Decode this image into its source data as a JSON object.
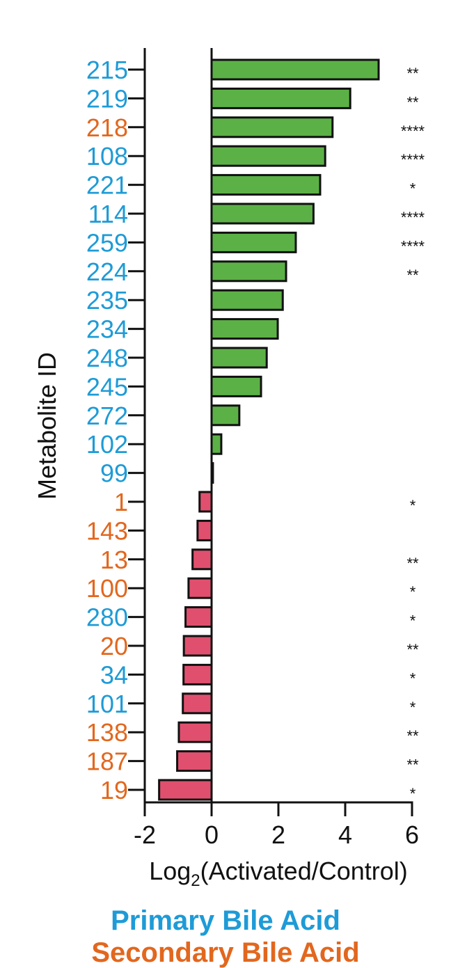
{
  "chart_data": {
    "type": "bar",
    "orientation": "horizontal",
    "ylabel": "Metabolite ID",
    "xlabel_main": "Log",
    "xlabel_sub": "2",
    "xlabel_rest": "(Activated/Control)",
    "xlim": [
      -2,
      6
    ],
    "xticks": [
      "-2",
      "0",
      "2",
      "4",
      "6"
    ],
    "positive_color": "#5cb146",
    "negative_color": "#e0506e",
    "class_colors": {
      "primary": "#1e9bd7",
      "secondary": "#e2671e"
    },
    "rows": [
      {
        "id": "215",
        "value": 5.0,
        "class": "primary",
        "sig": "**"
      },
      {
        "id": "219",
        "value": 4.15,
        "class": "primary",
        "sig": "**"
      },
      {
        "id": "218",
        "value": 3.62,
        "class": "secondary",
        "sig": "****"
      },
      {
        "id": "108",
        "value": 3.4,
        "class": "primary",
        "sig": "****"
      },
      {
        "id": "221",
        "value": 3.25,
        "class": "primary",
        "sig": "*"
      },
      {
        "id": "114",
        "value": 3.05,
        "class": "primary",
        "sig": "****"
      },
      {
        "id": "259",
        "value": 2.52,
        "class": "primary",
        "sig": "****"
      },
      {
        "id": "224",
        "value": 2.23,
        "class": "primary",
        "sig": "**"
      },
      {
        "id": "235",
        "value": 2.13,
        "class": "primary",
        "sig": ""
      },
      {
        "id": "234",
        "value": 1.98,
        "class": "primary",
        "sig": ""
      },
      {
        "id": "248",
        "value": 1.65,
        "class": "primary",
        "sig": ""
      },
      {
        "id": "245",
        "value": 1.48,
        "class": "primary",
        "sig": ""
      },
      {
        "id": "272",
        "value": 0.83,
        "class": "primary",
        "sig": ""
      },
      {
        "id": "102",
        "value": 0.29,
        "class": "primary",
        "sig": ""
      },
      {
        "id": "99",
        "value": 0.04,
        "class": "primary",
        "sig": ""
      },
      {
        "id": "1",
        "value": -0.36,
        "class": "secondary",
        "sig": "*"
      },
      {
        "id": "143",
        "value": -0.42,
        "class": "secondary",
        "sig": ""
      },
      {
        "id": "13",
        "value": -0.57,
        "class": "secondary",
        "sig": "**"
      },
      {
        "id": "100",
        "value": -0.69,
        "class": "secondary",
        "sig": "*"
      },
      {
        "id": "280",
        "value": -0.78,
        "class": "primary",
        "sig": "*"
      },
      {
        "id": "20",
        "value": -0.83,
        "class": "secondary",
        "sig": "**"
      },
      {
        "id": "34",
        "value": -0.84,
        "class": "primary",
        "sig": "*"
      },
      {
        "id": "101",
        "value": -0.86,
        "class": "primary",
        "sig": "*"
      },
      {
        "id": "138",
        "value": -0.98,
        "class": "secondary",
        "sig": "**"
      },
      {
        "id": "187",
        "value": -1.03,
        "class": "secondary",
        "sig": "**"
      },
      {
        "id": "19",
        "value": -1.57,
        "class": "secondary",
        "sig": "*"
      }
    ]
  },
  "legend": {
    "primary_label": "Primary Bile Acid",
    "secondary_label": "Secondary Bile Acid"
  }
}
